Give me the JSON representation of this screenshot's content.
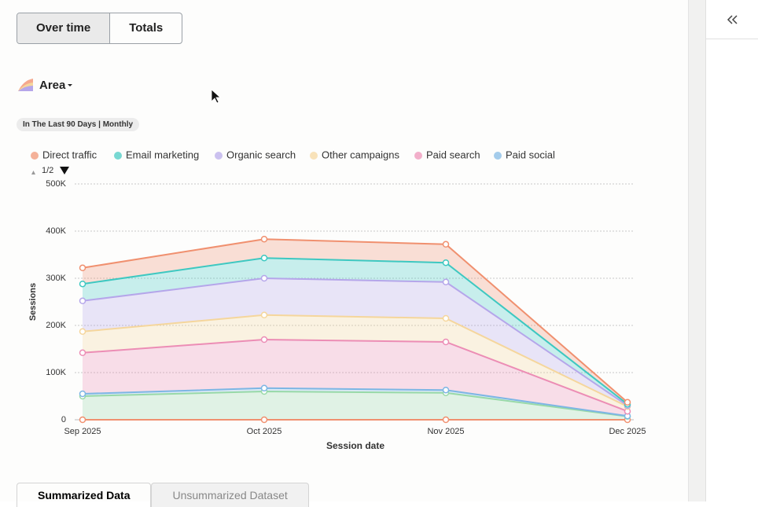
{
  "ui": {
    "toggle": [
      "Over time",
      "Totals"
    ],
    "chart_type": "Area",
    "date_filter": "In The Last 90 Days | Monthly",
    "legend_page": "1/2",
    "tabs": [
      "Summarized Data",
      "Unsummarized Dataset"
    ]
  },
  "chart_data": {
    "type": "area",
    "stacked": true,
    "xlabel": "Session date",
    "ylabel": "Sessions",
    "categories": [
      "Sep 2025",
      "Oct 2025",
      "Nov 2025",
      "Dec 2025"
    ],
    "ylim": [
      0,
      500000
    ],
    "yticks": [
      0,
      {
        "value": 100000,
        "label": "100K"
      },
      {
        "value": 200000,
        "label": "200K"
      },
      {
        "value": 300000,
        "label": "300K"
      },
      {
        "value": 400000,
        "label": "400K"
      },
      {
        "value": 500000,
        "label": "500K"
      }
    ],
    "grid": true,
    "series": [
      {
        "name": "Direct traffic",
        "color": "#f0906f",
        "values": [
          34000,
          40000,
          39000,
          4000
        ]
      },
      {
        "name": "Email marketing",
        "color": "#3ec8c1",
        "values": [
          36000,
          43000,
          41000,
          3000
        ]
      },
      {
        "name": "Organic search",
        "color": "#b5a6ea",
        "values": [
          65000,
          78000,
          77000,
          2000
        ]
      },
      {
        "name": "Other campaigns",
        "color": "#f5d69c",
        "values": [
          45000,
          52000,
          50000,
          10000
        ]
      },
      {
        "name": "Paid search",
        "color": "#ec8db5",
        "values": [
          87000,
          103000,
          102000,
          10000
        ]
      },
      {
        "name": "Paid social",
        "color": "#7db6e4",
        "values": [
          5000,
          7000,
          6000,
          1000
        ]
      },
      {
        "color": "#98d9a8",
        "values": [
          50000,
          60000,
          57000,
          7000
        ]
      },
      {
        "color": "#f0906f",
        "values": [
          0,
          0,
          0,
          0
        ]
      }
    ]
  }
}
